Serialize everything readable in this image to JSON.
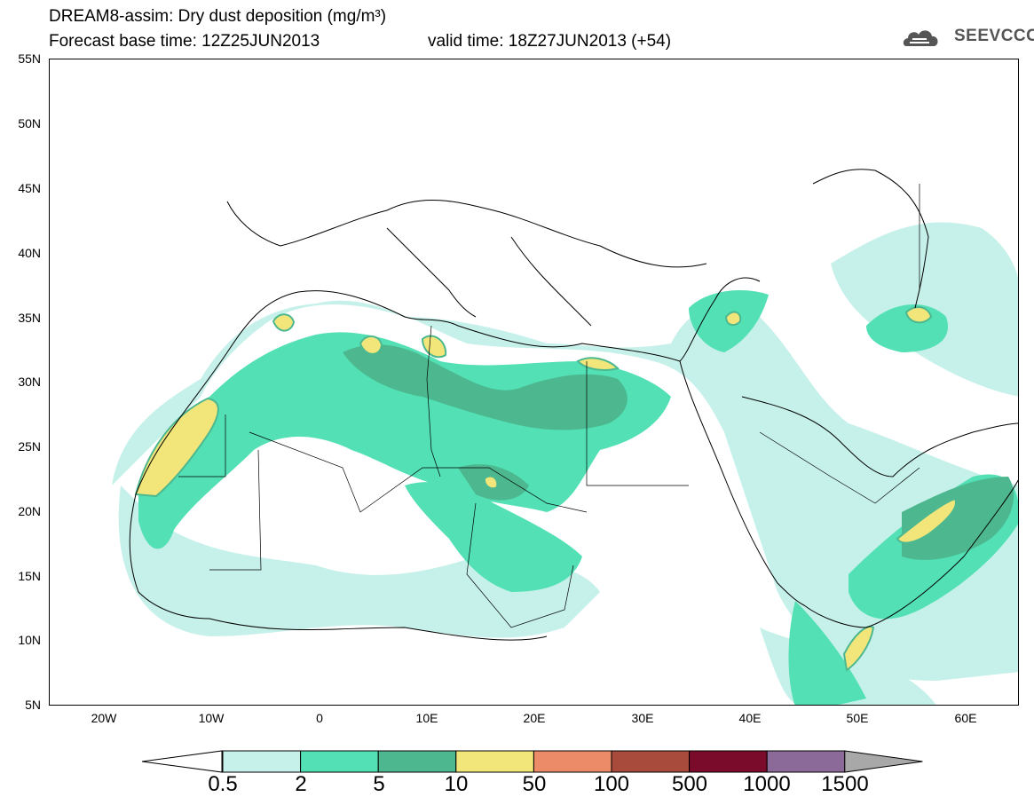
{
  "title": {
    "line1": "DREAM8-assim: Dry dust deposition (mg/m³)",
    "base_time_label": "Forecast base time: 12Z25JUN2013",
    "valid_time_label": "valid time: 18Z27JUN2013 (+54)"
  },
  "logo": {
    "text": "SEEVCCC",
    "icon": "cloud-logo-icon"
  },
  "map": {
    "lon_range": [
      -25,
      65
    ],
    "lat_range": [
      5,
      55
    ],
    "lat_ticks": [
      "55N",
      "50N",
      "45N",
      "40N",
      "35N",
      "30N",
      "25N",
      "20N",
      "15N",
      "10N",
      "5N"
    ],
    "lon_ticks": [
      "20W",
      "10W",
      "0",
      "10E",
      "20E",
      "30E",
      "40E",
      "50E",
      "60E"
    ]
  },
  "colorbar": {
    "labels": [
      "0.5",
      "2",
      "5",
      "10",
      "50",
      "100",
      "500",
      "1000",
      "1500"
    ],
    "colors": [
      "#c6f1ea",
      "#52e0b4",
      "#4db890",
      "#f2e67a",
      "#ec8b68",
      "#a84a3c",
      "#7b0b2a",
      "#8b6a9a",
      "#a8a8a8"
    ],
    "below_color": "#ffffff"
  }
}
